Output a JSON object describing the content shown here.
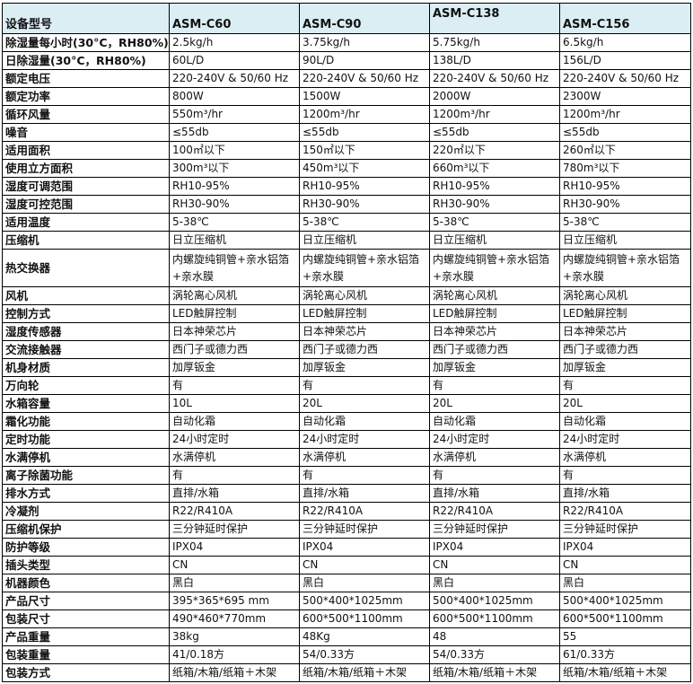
{
  "header": {
    "label": "设备型号",
    "models": [
      "ASM-C60",
      "ASM-C90",
      "ASM-C138",
      "ASM-C156"
    ]
  },
  "colors": {
    "header_bg": "#daeef3",
    "border": "#000000"
  },
  "rows": [
    {
      "label": "除湿量每小时(30°C，RH80%)",
      "values": [
        "2.5kg/h",
        "3.75kg/h",
        "5.75kg/h",
        "6.5kg/h"
      ]
    },
    {
      "label": "日除湿量(30°C，RH80%)",
      "values": [
        "60L/D",
        "90L/D",
        "138L/D",
        "156L/D"
      ]
    },
    {
      "label": "额定电压",
      "values": [
        "220-240V & 50/60 Hz",
        "220-240V & 50/60 Hz",
        "220-240V & 50/60 Hz",
        "220-240V & 50/60 Hz"
      ]
    },
    {
      "label": "额定功率",
      "values": [
        "800W",
        "1500W",
        "2000W",
        "2300W"
      ]
    },
    {
      "label": "循环风量",
      "values": [
        "550m³/hr",
        "1200m³/hr",
        "1200m³/hr",
        "1200m³/hr"
      ]
    },
    {
      "label": "噪音",
      "values": [
        "≤55db",
        "≤55db",
        "≤55db",
        "≤55db"
      ]
    },
    {
      "label": "适用面积",
      "values": [
        "100㎡以下",
        "150㎡以下",
        "220㎡以下",
        "260㎡以下"
      ]
    },
    {
      "label": "使用立方面积",
      "values": [
        "300m³以下",
        "450m³以下",
        "660m³以下",
        "780m³以下"
      ]
    },
    {
      "label": "湿度可调范围",
      "values": [
        "RH10-95%",
        "RH10-95%",
        "RH10-95%",
        "RH10-95%"
      ]
    },
    {
      "label": "湿度可控范围",
      "values": [
        "RH30-90%",
        "RH30-90%",
        "RH30-90%",
        "RH30-90%"
      ]
    },
    {
      "label": "适用温度",
      "values": [
        "5-38℃",
        "5-38℃",
        "5-38℃",
        "5-38℃"
      ]
    },
    {
      "label": "压缩机",
      "values": [
        "日立压缩机",
        "日立压缩机",
        "日立压缩机",
        "日立压缩机"
      ]
    },
    {
      "label": "热交换器",
      "tall": true,
      "values": [
        "内螺旋纯铜管+亲水铝箔+亲水膜",
        "内螺旋纯铜管+亲水铝箔+亲水膜",
        "内螺旋纯铜管+亲水铝箔+亲水膜",
        "内螺旋纯铜管+亲水铝箔+亲水膜"
      ]
    },
    {
      "label": "风机",
      "values": [
        "涡轮离心风机",
        "涡轮离心风机",
        "涡轮离心风机",
        "涡轮离心风机"
      ]
    },
    {
      "label": "控制方式",
      "values": [
        "LED触屏控制",
        "LED触屏控制",
        "LED触屏控制",
        "LED触屏控制"
      ]
    },
    {
      "label": "湿度传感器",
      "values": [
        "日本神荣芯片",
        "日本神荣芯片",
        "日本神荣芯片",
        "日本神荣芯片"
      ]
    },
    {
      "label": "交流接触器",
      "values": [
        "西门子或德力西",
        "西门子或德力西",
        "西门子或德力西",
        "西门子或德力西"
      ]
    },
    {
      "label": "机身材质",
      "values": [
        "加厚钣金",
        "加厚钣金",
        "加厚钣金",
        "加厚钣金"
      ]
    },
    {
      "label": "万向轮",
      "values": [
        "有",
        "有",
        "有",
        "有"
      ]
    },
    {
      "label": "水箱容量",
      "values": [
        "10L",
        "20L",
        "20L",
        "20L"
      ]
    },
    {
      "label": "霜化功能",
      "values": [
        "自动化霜",
        "自动化霜",
        "自动化霜",
        "自动化霜"
      ]
    },
    {
      "label": "定时功能",
      "values": [
        "24小时定时",
        "24小时定时",
        "24小时定时",
        "24小时定时"
      ]
    },
    {
      "label": "水满停机",
      "values": [
        "水满停机",
        "水满停机",
        "水满停机",
        "水满停机"
      ]
    },
    {
      "label": "离子除菌功能",
      "values": [
        "有",
        "有",
        "有",
        "有"
      ]
    },
    {
      "label": "排水方式",
      "values": [
        "直排/水箱",
        "直排/水箱",
        "直排/水箱",
        "直排/水箱"
      ]
    },
    {
      "label": "冷凝剂",
      "values": [
        "R22/R410A",
        "R22/R410A",
        "R22/R410A",
        "R22/R410A"
      ]
    },
    {
      "label": "压缩机保护",
      "values": [
        "三分钟延时保护",
        "三分钟延时保护",
        "三分钟延时保护",
        "三分钟延时保护"
      ]
    },
    {
      "label": "防护等级",
      "values": [
        "IPX04",
        "IPX04",
        "IPX04",
        "IPX04"
      ]
    },
    {
      "label": "插头类型",
      "values": [
        "CN",
        "CN",
        "CN",
        "CN"
      ]
    },
    {
      "label": "机器颜色",
      "values": [
        "黑白",
        "黑白",
        "黑白",
        "黑白"
      ]
    },
    {
      "label": "产品尺寸",
      "values": [
        "395*365*695 mm",
        "500*400*1025mm",
        "500*400*1025mm",
        "500*400*1025mm"
      ]
    },
    {
      "label": "包装尺寸",
      "values": [
        "490*460*770mm",
        "600*500*1100mm",
        "600*500*1100mm",
        "600*500*1100mm"
      ]
    },
    {
      "label": "产品重量",
      "values": [
        "38kg",
        "48Kg",
        "48",
        "55"
      ]
    },
    {
      "label": "包装重量",
      "values": [
        "41/0.18方",
        "54/0.33方",
        "54/0.33方",
        "61/0.33方"
      ]
    },
    {
      "label": "包装方式",
      "values": [
        "纸箱/木箱/纸箱＋木架",
        "纸箱/木箱/纸箱＋木架",
        "纸箱/木箱/纸箱＋木架",
        "纸箱/木箱/纸箱＋木架"
      ]
    }
  ]
}
